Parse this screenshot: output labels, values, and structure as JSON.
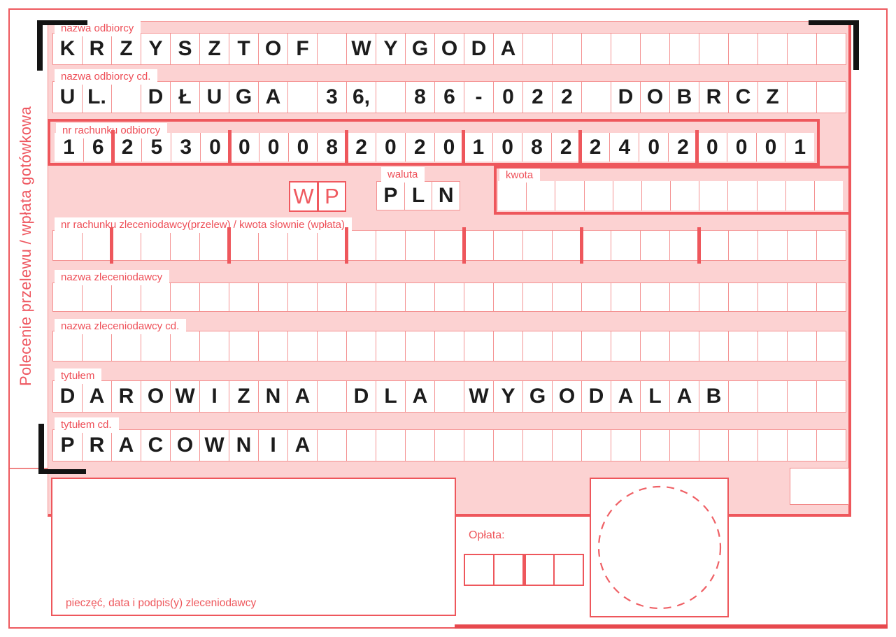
{
  "form": {
    "side_title": "Polecenie przelewu / wpłata gotówkowa",
    "rows": [
      {
        "key": "nazwa_odbiorcy",
        "label": "nazwa odbiorcy",
        "value": "KRZYSZTOF WYGODA"
      },
      {
        "key": "nazwa_odbiorcy_cd",
        "label": "nazwa odbiorcy cd.",
        "value": "UL. DŁUGA 36, 86-022 DOBRCZ"
      },
      {
        "key": "nr_rachunku_odbiorcy",
        "label": "nr rachunku odbiorcy",
        "value": "16253000082020108224020001",
        "thick_after": [
          2,
          6,
          10,
          14,
          18,
          22
        ]
      },
      {
        "key": "nr_rachunku_zleceniodawcy",
        "label": "nr rachunku zleceniodawcy(przelew) / kwota słownie (wpłata)",
        "value": "",
        "thick_after": [
          2,
          6,
          10,
          14,
          18,
          22
        ]
      },
      {
        "key": "nazwa_zleceniodawcy",
        "label": "nazwa zleceniodawcy",
        "value": ""
      },
      {
        "key": "nazwa_zleceniodawcy_cd",
        "label": "nazwa zleceniodawcy cd.",
        "value": ""
      },
      {
        "key": "tytulem",
        "label": "tytułem",
        "value": "DAROWIZNA DLA WYGODALAB"
      },
      {
        "key": "tytulem_cd",
        "label": "tytułem cd.",
        "value": "PRACOWNIA"
      }
    ],
    "transfer_type_marks": [
      "W",
      "P"
    ],
    "currency": {
      "label": "waluta",
      "value": "PLN"
    },
    "amount": {
      "label": "kwota",
      "cell_count": 12
    },
    "fee": {
      "label": "Opłata:",
      "cell_count": 4
    },
    "signature_label": "pieczęć, data i podpis(y) zleceniodawcy",
    "colors": {
      "pink_background": "#fcd2d2",
      "grid_red": "#f49292",
      "strong_red": "#ee575c",
      "label_red": "#ee4f58",
      "text_black": "#1c1c1c"
    }
  }
}
